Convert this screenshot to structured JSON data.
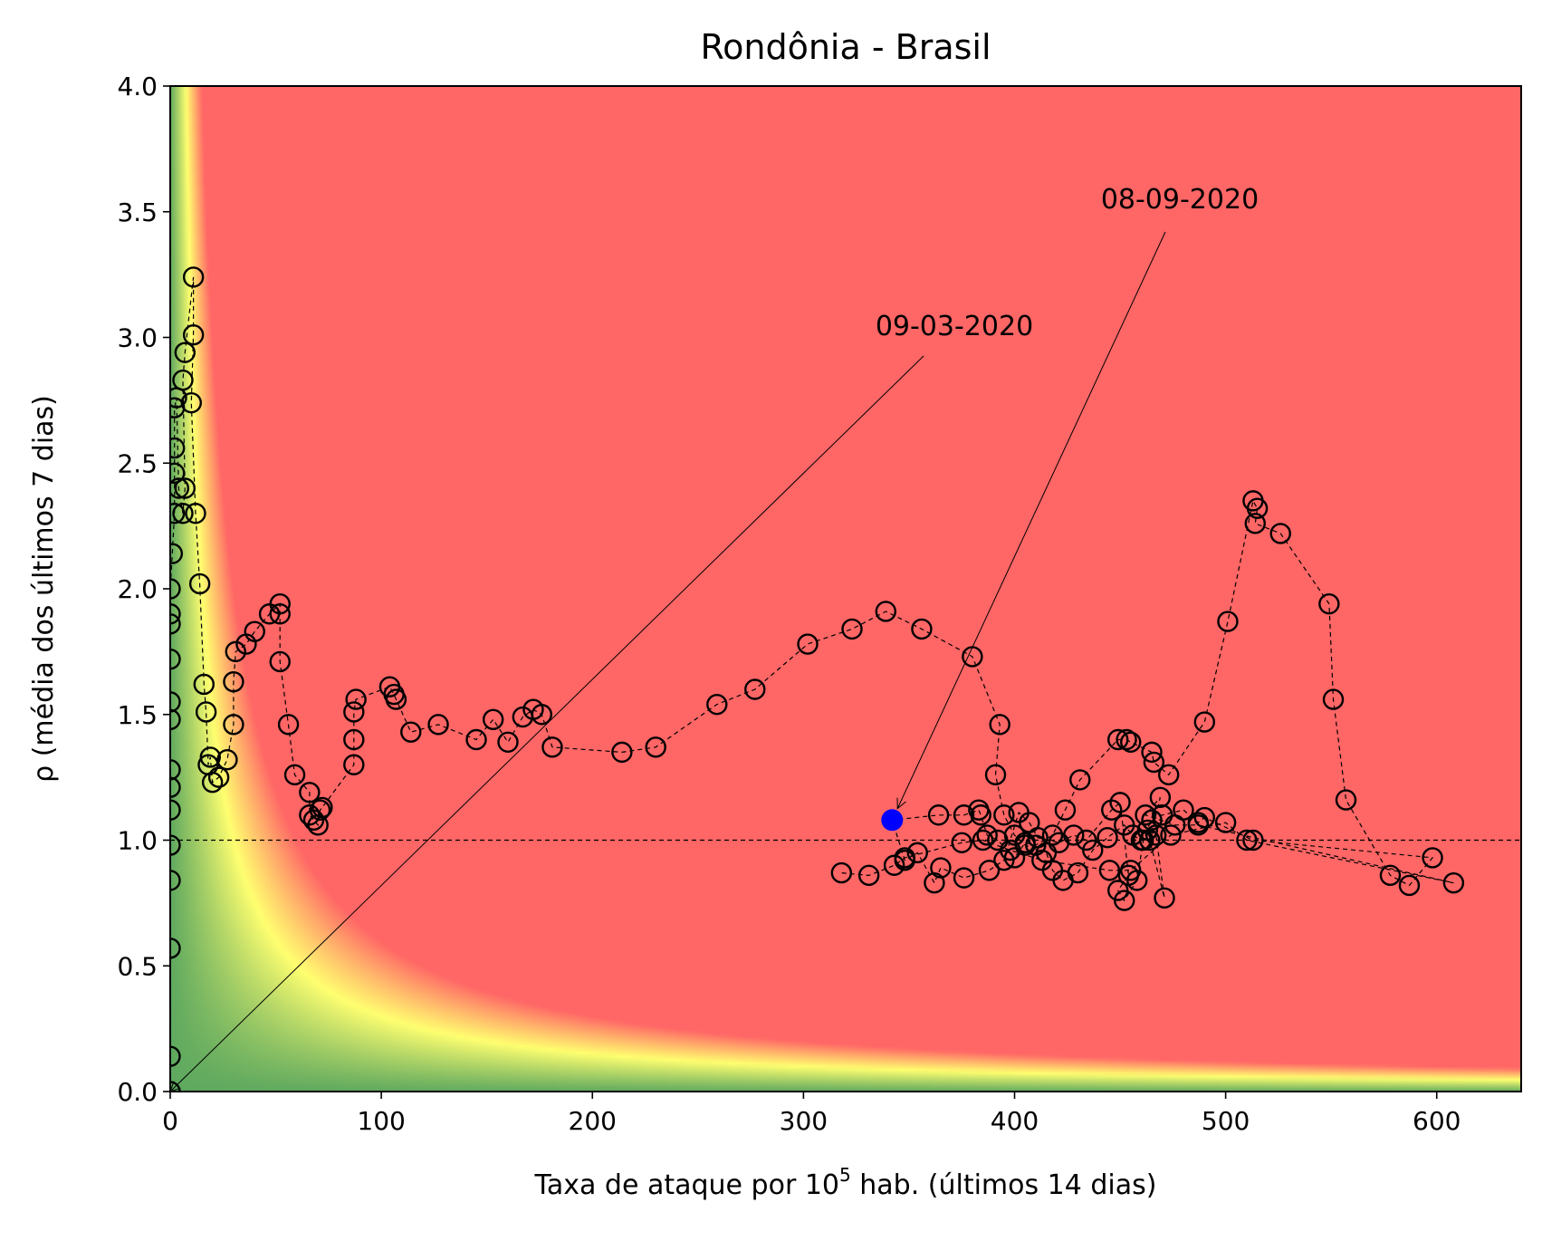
{
  "chart_data": {
    "type": "scatter",
    "title": "Rondônia - Brasil",
    "xlabel_prefix": "Taxa de ataque por 10",
    "xlabel_sup": "5",
    "xlabel_suffix": " hab. (últimos 14 dias)",
    "ylabel": "ρ (média dos últimos 7 dias)",
    "xlim": [
      0,
      640
    ],
    "ylim": [
      0,
      4.0
    ],
    "xticks": [
      0,
      100,
      200,
      300,
      400,
      500,
      600
    ],
    "yticks": [
      0.0,
      0.5,
      1.0,
      1.5,
      2.0,
      2.5,
      3.0,
      3.5,
      4.0
    ],
    "xtick_labels": [
      "0",
      "100",
      "200",
      "300",
      "400",
      "500",
      "600"
    ],
    "ytick_labels": [
      "0.0",
      "0.5",
      "1.0",
      "1.5",
      "2.0",
      "2.5",
      "3.0",
      "3.5",
      "4.0"
    ],
    "reference_line_y": 1.0,
    "background": "risk gradient: green (low) → yellow → red (high), boundary where x·ρ ≈ 60",
    "colors": {
      "green": "#5fa95f",
      "yellow": "#ffff70",
      "red": "#ff6666",
      "marker": "#000000",
      "highlight": "#0000ff"
    },
    "annotations": [
      {
        "text": "09-03-2020",
        "point": [
          0,
          0
        ]
      },
      {
        "text": "08-09-2020",
        "point": [
          342,
          1.08
        ]
      }
    ],
    "highlight_point": [
      342,
      1.08
    ],
    "series": [
      {
        "values": [
          [
            0,
            0.0
          ],
          [
            0,
            0.14
          ],
          [
            0,
            0.57
          ],
          [
            0,
            0.84
          ],
          [
            0,
            0.98
          ],
          [
            0,
            1.12
          ],
          [
            0,
            1.21
          ],
          [
            0,
            1.28
          ],
          [
            0,
            1.48
          ],
          [
            0,
            1.55
          ],
          [
            0,
            1.72
          ],
          [
            0,
            1.86
          ],
          [
            0,
            1.9
          ],
          [
            0,
            2.0
          ],
          [
            1,
            2.14
          ],
          [
            2,
            2.3
          ],
          [
            2,
            2.46
          ],
          [
            2,
            2.56
          ],
          [
            2,
            2.72
          ],
          [
            3,
            2.76
          ],
          [
            4,
            2.4
          ],
          [
            6,
            2.3
          ],
          [
            7,
            2.4
          ],
          [
            6,
            2.83
          ],
          [
            7,
            2.94
          ],
          [
            11,
            3.24
          ],
          [
            11,
            3.01
          ],
          [
            10,
            2.74
          ],
          [
            12,
            2.3
          ],
          [
            14,
            2.02
          ],
          [
            16,
            1.62
          ],
          [
            17,
            1.51
          ],
          [
            18,
            1.3
          ],
          [
            19,
            1.33
          ],
          [
            20,
            1.23
          ],
          [
            23,
            1.25
          ],
          [
            27,
            1.32
          ],
          [
            30,
            1.46
          ],
          [
            30,
            1.63
          ],
          [
            31,
            1.75
          ],
          [
            36,
            1.78
          ],
          [
            40,
            1.83
          ],
          [
            47,
            1.9
          ],
          [
            52,
            1.94
          ],
          [
            52,
            1.9
          ],
          [
            52,
            1.71
          ],
          [
            56,
            1.46
          ],
          [
            59,
            1.26
          ],
          [
            66,
            1.19
          ],
          [
            66,
            1.1
          ],
          [
            68,
            1.08
          ],
          [
            70,
            1.06
          ],
          [
            71,
            1.12
          ],
          [
            72,
            1.13
          ],
          [
            87,
            1.3
          ],
          [
            87,
            1.4
          ],
          [
            87,
            1.51
          ],
          [
            88,
            1.56
          ],
          [
            104,
            1.61
          ],
          [
            106,
            1.58
          ],
          [
            107,
            1.56
          ],
          [
            114,
            1.43
          ],
          [
            127,
            1.46
          ],
          [
            145,
            1.4
          ],
          [
            153,
            1.48
          ],
          [
            160,
            1.39
          ],
          [
            167,
            1.49
          ],
          [
            172,
            1.52
          ],
          [
            176,
            1.5
          ],
          [
            181,
            1.37
          ],
          [
            214,
            1.35
          ],
          [
            230,
            1.37
          ],
          [
            259,
            1.54
          ],
          [
            277,
            1.6
          ],
          [
            302,
            1.78
          ],
          [
            323,
            1.84
          ],
          [
            339,
            1.91
          ],
          [
            356,
            1.84
          ],
          [
            380,
            1.73
          ],
          [
            393,
            1.46
          ],
          [
            391,
            1.26
          ],
          [
            395,
            1.1
          ],
          [
            400,
            1.02
          ],
          [
            405,
            0.98
          ],
          [
            415,
            0.95
          ],
          [
            418,
            0.88
          ],
          [
            423,
            0.84
          ],
          [
            430,
            0.87
          ],
          [
            437,
            0.96
          ],
          [
            444,
            1.01
          ],
          [
            452,
            1.06
          ],
          [
            456,
            1.02
          ],
          [
            460,
            1.0
          ],
          [
            465,
            1.08
          ],
          [
            470,
            1.1
          ],
          [
            480,
            1.12
          ],
          [
            487,
            1.07
          ],
          [
            490,
            1.09
          ],
          [
            513,
            1.0
          ],
          [
            598,
            0.93
          ],
          [
            587,
            0.82
          ],
          [
            578,
            0.86
          ],
          [
            557,
            1.16
          ],
          [
            551,
            1.56
          ],
          [
            549,
            1.94
          ],
          [
            526,
            2.22
          ],
          [
            514,
            2.26
          ],
          [
            515,
            2.32
          ],
          [
            513,
            2.35
          ],
          [
            501,
            1.87
          ],
          [
            490,
            1.47
          ],
          [
            473,
            1.26
          ],
          [
            466,
            1.31
          ],
          [
            465,
            1.35
          ],
          [
            455,
            1.39
          ],
          [
            453,
            1.4
          ],
          [
            449,
            1.4
          ],
          [
            431,
            1.24
          ],
          [
            424,
            1.12
          ],
          [
            418,
            1.02
          ],
          [
            410,
            0.98
          ],
          [
            405,
            0.99
          ],
          [
            400,
            0.93
          ],
          [
            392,
            1.0
          ],
          [
            387,
            1.02
          ],
          [
            384,
            1.1
          ],
          [
            383,
            1.12
          ],
          [
            376,
            1.1
          ],
          [
            364,
            1.1
          ],
          [
            342,
            1.08
          ],
          [
            348,
            0.92
          ],
          [
            354,
            0.95
          ],
          [
            362,
            0.83
          ],
          [
            365,
            0.89
          ],
          [
            376,
            0.85
          ],
          [
            388,
            0.88
          ],
          [
            395,
            0.92
          ],
          [
            402,
            1.11
          ],
          [
            407,
            1.07
          ],
          [
            411,
            1.01
          ],
          [
            421,
            0.99
          ],
          [
            428,
            1.02
          ],
          [
            434,
            1.0
          ],
          [
            446,
            1.12
          ],
          [
            450,
            1.15
          ],
          [
            454,
            0.86
          ],
          [
            449,
            0.8
          ],
          [
            452,
            0.76
          ],
          [
            458,
            0.84
          ],
          [
            461,
            1.0
          ],
          [
            463,
            1.04
          ],
          [
            467,
            1.02
          ],
          [
            471,
            0.77
          ],
          [
            464,
            1.0
          ],
          [
            469,
            1.17
          ],
          [
            462,
            1.1
          ],
          [
            476,
            1.06
          ],
          [
            487,
            1.06
          ],
          [
            608,
            0.83
          ],
          [
            510,
            1.0
          ],
          [
            500,
            1.07
          ],
          [
            474,
            1.02
          ],
          [
            455,
            0.88
          ],
          [
            445,
            0.88
          ],
          [
            413,
            0.92
          ],
          [
            398,
            0.96
          ],
          [
            385,
            1.0
          ],
          [
            375,
            0.99
          ],
          [
            348,
            0.93
          ],
          [
            343,
            0.9
          ],
          [
            331,
            0.86
          ],
          [
            318,
            0.87
          ]
        ]
      }
    ]
  }
}
